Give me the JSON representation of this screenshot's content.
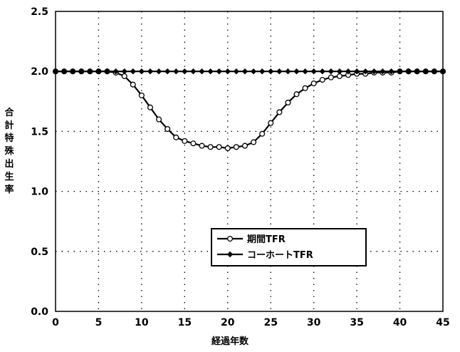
{
  "chart_data": {
    "type": "line",
    "title": "",
    "xlabel": "経過年数",
    "ylabel": "合計特殊出生率",
    "xlim": [
      0,
      45
    ],
    "ylim": [
      0,
      2.5
    ],
    "xticks": [
      "0",
      "5",
      "10",
      "15",
      "20",
      "25",
      "30",
      "35",
      "40",
      "45"
    ],
    "yticks": [
      "0.0",
      "0.5",
      "1.0",
      "1.5",
      "2.0",
      "2.5"
    ],
    "grid": "dotted",
    "legend_position": "lower-center",
    "series": [
      {
        "name": "期間TFR",
        "marker": "open-circle",
        "color": "#000000",
        "x": [
          0,
          1,
          2,
          3,
          4,
          5,
          6,
          7,
          8,
          9,
          10,
          11,
          12,
          13,
          14,
          15,
          16,
          17,
          18,
          19,
          20,
          21,
          22,
          23,
          24,
          25,
          26,
          27,
          28,
          29,
          30,
          31,
          32,
          33,
          34,
          35,
          36,
          37,
          38,
          39,
          40,
          41,
          42,
          43,
          44,
          45
        ],
        "y": [
          2.0,
          2.0,
          2.0,
          2.0,
          2.0,
          2.0,
          2.0,
          1.99,
          1.96,
          1.89,
          1.8,
          1.7,
          1.6,
          1.52,
          1.45,
          1.42,
          1.4,
          1.38,
          1.37,
          1.37,
          1.36,
          1.37,
          1.38,
          1.41,
          1.48,
          1.57,
          1.66,
          1.74,
          1.81,
          1.86,
          1.9,
          1.93,
          1.95,
          1.96,
          1.97,
          1.98,
          1.98,
          1.99,
          1.99,
          1.99,
          2.0,
          2.0,
          2.0,
          2.0,
          2.0,
          2.0
        ]
      },
      {
        "name": "コーホートTFR",
        "marker": "filled-diamond",
        "color": "#000000",
        "x": [
          0,
          1,
          2,
          3,
          4,
          5,
          6,
          7,
          8,
          9,
          10,
          11,
          12,
          13,
          14,
          15,
          16,
          17,
          18,
          19,
          20,
          21,
          22,
          23,
          24,
          25,
          26,
          27,
          28,
          29,
          30,
          31,
          32,
          33,
          34,
          35,
          36,
          37,
          38,
          39,
          40,
          41,
          42,
          43,
          44,
          45
        ],
        "y": [
          2.0,
          2.0,
          2.0,
          2.0,
          2.0,
          2.0,
          2.0,
          2.0,
          2.0,
          2.0,
          2.0,
          2.0,
          2.0,
          2.0,
          2.0,
          2.0,
          2.0,
          2.0,
          2.0,
          2.0,
          2.0,
          2.0,
          2.0,
          2.0,
          2.0,
          2.0,
          2.0,
          2.0,
          2.0,
          2.0,
          2.0,
          2.0,
          2.0,
          2.0,
          2.0,
          2.0,
          2.0,
          2.0,
          2.0,
          2.0,
          2.0,
          2.0,
          2.0,
          2.0,
          2.0,
          2.0
        ]
      }
    ]
  }
}
